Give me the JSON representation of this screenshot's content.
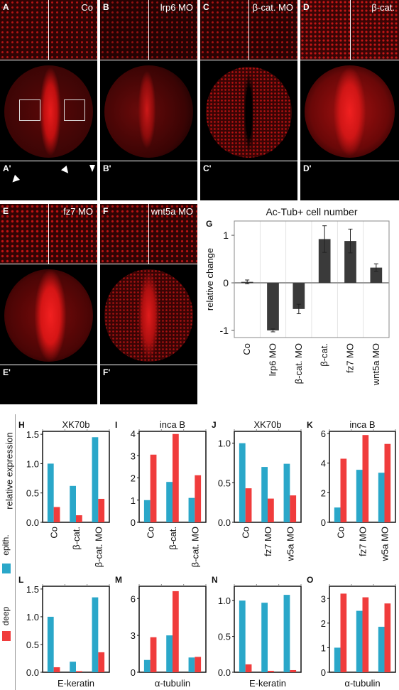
{
  "figure": {
    "panels": [
      {
        "id": "A",
        "label": "A",
        "title": "Co",
        "sub": "A'"
      },
      {
        "id": "B",
        "label": "B",
        "title": "lrp6 MO",
        "sub": "B'"
      },
      {
        "id": "C",
        "label": "C",
        "title": "β-cat. MO",
        "sub": "C'"
      },
      {
        "id": "D",
        "label": "D",
        "title": "β-cat.",
        "sub": "D'"
      },
      {
        "id": "E",
        "label": "E",
        "title": "fz7 MO",
        "sub": "E'"
      },
      {
        "id": "F",
        "label": "F",
        "title": "wnt5a MO",
        "sub": "F'"
      }
    ],
    "ylabel_global": "relative expression",
    "legend": [
      {
        "name": "epith.",
        "color": "#2aa7c9"
      },
      {
        "name": "deep",
        "color": "#f03c3c"
      }
    ]
  },
  "chart_data": [
    {
      "id": "G",
      "label": "G",
      "type": "bar",
      "title": "Ac-Tub+ cell number",
      "ylabel": "relative change",
      "categories": [
        "Co",
        "lrp6 MO",
        "β-cat. MO",
        "β-cat.",
        "fz7 MO",
        "wnt5a MO"
      ],
      "values": [
        0.02,
        -1.0,
        -0.55,
        0.92,
        0.88,
        0.32
      ],
      "errors": [
        0.04,
        0.03,
        0.1,
        0.28,
        0.25,
        0.08
      ],
      "ylim": [
        -1.15,
        1.3
      ],
      "yticks": [
        -1,
        0,
        1
      ],
      "color": "#3a3a3a"
    },
    {
      "id": "H",
      "label": "H",
      "type": "bar",
      "title": "XK70b",
      "categories": [
        "Co",
        "β-cat.",
        "β-cat. MO"
      ],
      "series": [
        {
          "name": "epith.",
          "values": [
            1.0,
            0.62,
            1.45
          ]
        },
        {
          "name": "deep",
          "values": [
            0.26,
            0.12,
            0.4
          ]
        }
      ],
      "ylim": [
        0,
        1.55
      ],
      "yticks": [
        "0.0",
        "0.5",
        "1.0",
        "1.5"
      ]
    },
    {
      "id": "I",
      "label": "I",
      "type": "bar",
      "title": "inca B",
      "categories": [
        "Co",
        "β-cat.",
        "β-cat. MO"
      ],
      "series": [
        {
          "name": "epith.",
          "values": [
            1.0,
            1.82,
            1.1
          ]
        },
        {
          "name": "deep",
          "values": [
            3.05,
            3.98,
            2.12
          ]
        }
      ],
      "ylim": [
        0,
        4.1
      ],
      "yticks": [
        "0",
        "1",
        "2",
        "3",
        "4"
      ]
    },
    {
      "id": "J",
      "label": "J",
      "type": "bar",
      "title": "XK70b",
      "categories": [
        "Co",
        "fz7 MO",
        "w5a MO"
      ],
      "series": [
        {
          "name": "epith.",
          "values": [
            1.0,
            0.7,
            0.74
          ]
        },
        {
          "name": "deep",
          "values": [
            0.43,
            0.3,
            0.34
          ]
        }
      ],
      "ylim": [
        0,
        1.15
      ],
      "yticks": [
        "0.0",
        "0.5",
        "1.0"
      ]
    },
    {
      "id": "K",
      "label": "K",
      "type": "bar",
      "title": "inca B",
      "categories": [
        "Co",
        "fz7 MO",
        "w5a MO"
      ],
      "series": [
        {
          "name": "epith.",
          "values": [
            1.0,
            3.55,
            3.35
          ]
        },
        {
          "name": "deep",
          "values": [
            4.3,
            5.9,
            5.3
          ]
        }
      ],
      "ylim": [
        0,
        6.15
      ],
      "yticks": [
        "0",
        "2",
        "4",
        "6"
      ]
    },
    {
      "id": "L",
      "label": "L",
      "type": "bar",
      "xlabel": "E-keratin",
      "categories": [
        "Co",
        "β-cat.",
        "β-cat. MO"
      ],
      "series": [
        {
          "name": "epith.",
          "values": [
            1.0,
            0.19,
            1.35
          ]
        },
        {
          "name": "deep",
          "values": [
            0.09,
            0.02,
            0.36
          ]
        }
      ],
      "ylim": [
        0,
        1.55
      ],
      "yticks": [
        "0.0",
        "0.5",
        "1.0",
        "1.5"
      ]
    },
    {
      "id": "M",
      "label": "M",
      "type": "bar",
      "xlabel": "α-tubulin",
      "categories": [
        "Co",
        "β-cat.",
        "β-cat. MO"
      ],
      "series": [
        {
          "name": "epith.",
          "values": [
            1.0,
            3.0,
            1.2
          ]
        },
        {
          "name": "deep",
          "values": [
            2.85,
            6.6,
            1.25
          ]
        }
      ],
      "ylim": [
        0,
        7.0
      ],
      "yticks": [
        "0",
        "3",
        "6"
      ]
    },
    {
      "id": "N",
      "label": "N",
      "type": "bar",
      "xlabel": "E-keratin",
      "categories": [
        "Co",
        "fz7 MO",
        "w5a MO"
      ],
      "series": [
        {
          "name": "epith.",
          "values": [
            1.0,
            0.97,
            1.08
          ]
        },
        {
          "name": "deep",
          "values": [
            0.11,
            0.02,
            0.03
          ]
        }
      ],
      "ylim": [
        0,
        1.2
      ],
      "yticks": [
        "0.0",
        "0.5",
        "1.0"
      ]
    },
    {
      "id": "O",
      "label": "O",
      "type": "bar",
      "xlabel": "α-tubulin",
      "categories": [
        "Co",
        "fz7 MO",
        "w5a MO"
      ],
      "series": [
        {
          "name": "epith.",
          "values": [
            1.0,
            2.5,
            1.85
          ]
        },
        {
          "name": "deep",
          "values": [
            3.2,
            3.05,
            2.8
          ]
        }
      ],
      "ylim": [
        0,
        3.5
      ],
      "yticks": [
        "0",
        "1",
        "2",
        "3"
      ]
    }
  ]
}
